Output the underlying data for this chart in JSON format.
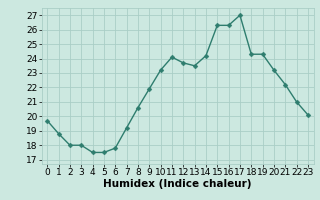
{
  "x": [
    0,
    1,
    2,
    3,
    4,
    5,
    6,
    7,
    8,
    9,
    10,
    11,
    12,
    13,
    14,
    15,
    16,
    17,
    18,
    19,
    20,
    21,
    22,
    23
  ],
  "y": [
    19.7,
    18.8,
    18.0,
    18.0,
    17.5,
    17.5,
    17.8,
    19.2,
    20.6,
    21.9,
    23.2,
    24.1,
    23.7,
    23.5,
    24.2,
    26.3,
    26.3,
    27.0,
    24.3,
    24.3,
    23.2,
    22.2,
    21.0,
    20.1
  ],
  "line_color": "#2e7d6e",
  "marker_color": "#2e7d6e",
  "bg_color": "#cce8e0",
  "grid_color": "#aacec6",
  "xlabel": "Humidex (Indice chaleur)",
  "ylabel_ticks": [
    17,
    18,
    19,
    20,
    21,
    22,
    23,
    24,
    25,
    26,
    27
  ],
  "xlim": [
    -0.5,
    23.5
  ],
  "ylim": [
    16.7,
    27.5
  ],
  "xlabel_fontsize": 7.5,
  "tick_fontsize": 6.5,
  "marker_size": 2.5,
  "line_width": 1.0
}
